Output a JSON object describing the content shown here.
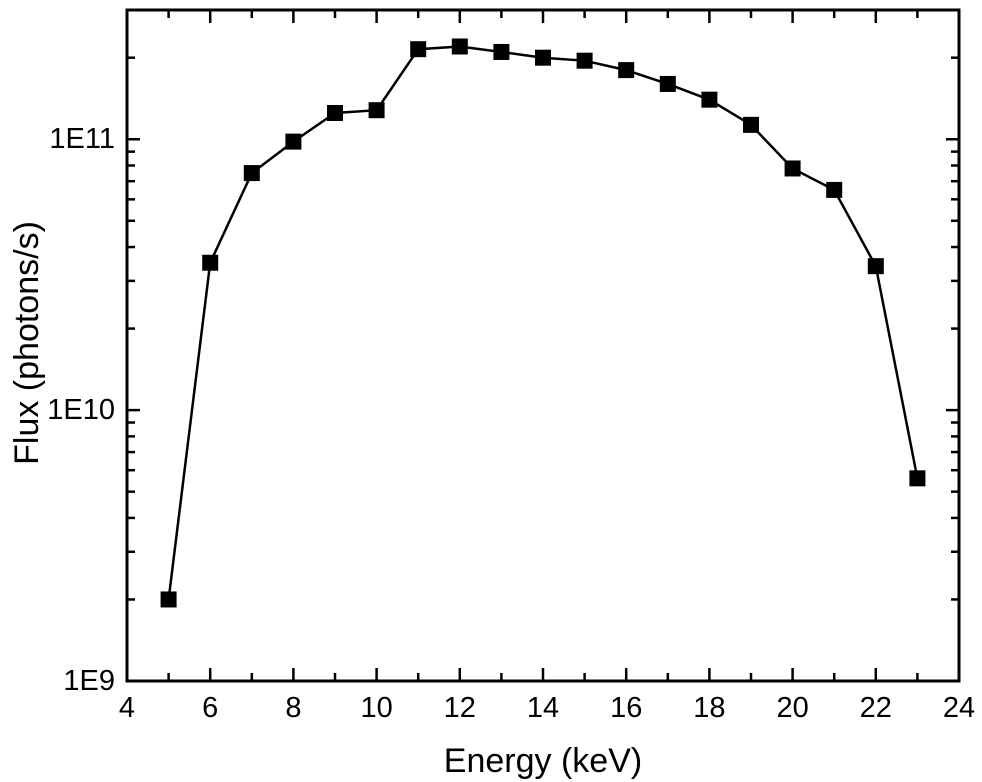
{
  "page": {
    "background": "#ffffff"
  },
  "chart_data": {
    "type": "line",
    "title": "",
    "xlabel": "Energy (keV)",
    "ylabel": "Flux (photons/s)",
    "grid": false,
    "legend": "none",
    "color": "#000000",
    "x_axis": {
      "min": 4,
      "max": 24,
      "scale": "linear",
      "major_ticks": [
        4,
        6,
        8,
        10,
        12,
        14,
        16,
        18,
        20,
        22,
        24
      ],
      "major_tick_labels": [
        "4",
        "6",
        "8",
        "10",
        "12",
        "14",
        "16",
        "18",
        "20",
        "22",
        "24"
      ],
      "minor_ticks": [
        5,
        7,
        9,
        11,
        13,
        15,
        17,
        19,
        21,
        23
      ]
    },
    "y_axis": {
      "min": 1000000000.0,
      "max": 300000000000.0,
      "scale": "log",
      "major_ticks": [
        1000000000.0,
        10000000000.0,
        100000000000.0
      ],
      "major_tick_labels": [
        "1E9",
        "1E10",
        "1E11"
      ],
      "minor_ticks": [
        2000000000.0,
        3000000000.0,
        4000000000.0,
        5000000000.0,
        6000000000.0,
        7000000000.0,
        8000000000.0,
        9000000000.0,
        20000000000.0,
        30000000000.0,
        40000000000.0,
        50000000000.0,
        60000000000.0,
        70000000000.0,
        80000000000.0,
        90000000000.0,
        200000000000.0,
        300000000000.0
      ]
    },
    "series": [
      {
        "name": "flux",
        "marker": "square",
        "line_style": "solid",
        "color": "#000000",
        "x": [
          5,
          6,
          7,
          8,
          9,
          10,
          11,
          12,
          13,
          14,
          15,
          16,
          17,
          18,
          19,
          20,
          21,
          22,
          23
        ],
        "y": [
          2000000000.0,
          35000000000.0,
          75000000000.0,
          98000000000.0,
          125000000000.0,
          128000000000.0,
          215000000000.0,
          220000000000.0,
          210000000000.0,
          200000000000.0,
          195000000000.0,
          180000000000.0,
          160000000000.0,
          140000000000.0,
          113000000000.0,
          78000000000.0,
          65000000000.0,
          34000000000.0,
          5600000000.0
        ]
      }
    ]
  }
}
